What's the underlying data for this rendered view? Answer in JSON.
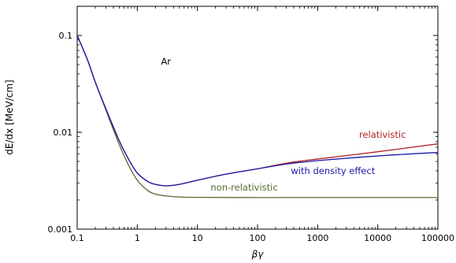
{
  "chart_data": {
    "type": "line",
    "title": "",
    "xlabel": "βγ",
    "ylabel": "dE/dx [MeV/cm]",
    "xscale": "log",
    "yscale": "log",
    "xlim": [
      0.1,
      100000
    ],
    "ylim": [
      0.001,
      0.2
    ],
    "grid": false,
    "x_ticks": [
      {
        "value": 0.1,
        "label": "0.1"
      },
      {
        "value": 1,
        "label": "1"
      },
      {
        "value": 10,
        "label": "10"
      },
      {
        "value": 100,
        "label": "100"
      },
      {
        "value": 1000,
        "label": "1000"
      },
      {
        "value": 10000,
        "label": "10000"
      },
      {
        "value": 100000,
        "label": "100000"
      }
    ],
    "y_ticks": [
      {
        "value": 0.001,
        "label": "0.001"
      },
      {
        "value": 0.01,
        "label": "0.01"
      },
      {
        "value": 0.1,
        "label": "0.1"
      }
    ],
    "annotations": [
      {
        "text": "Ar",
        "x": 3,
        "y": 0.05,
        "color": "#000000"
      }
    ],
    "series": [
      {
        "name": "non-relativistic",
        "color": "#556b2f",
        "label_pos": {
          "x": 60,
          "y": 0.0025
        },
        "points": [
          [
            0.1,
            0.1
          ],
          [
            0.15,
            0.055
          ],
          [
            0.2,
            0.033
          ],
          [
            0.3,
            0.017
          ],
          [
            0.5,
            0.0075
          ],
          [
            0.7,
            0.0047
          ],
          [
            1,
            0.0032
          ],
          [
            1.5,
            0.0025
          ],
          [
            2,
            0.0023
          ],
          [
            3,
            0.0022
          ],
          [
            5,
            0.00215
          ],
          [
            10,
            0.00213
          ],
          [
            100,
            0.00212
          ],
          [
            1000,
            0.00212
          ],
          [
            10000,
            0.00212
          ],
          [
            100000,
            0.00212
          ]
        ]
      },
      {
        "name": "relativistic",
        "color": "#b22222",
        "label_pos": {
          "x": 12000,
          "y": 0.0088
        },
        "points": [
          [
            0.1,
            0.1
          ],
          [
            0.15,
            0.055
          ],
          [
            0.2,
            0.033
          ],
          [
            0.3,
            0.0175
          ],
          [
            0.5,
            0.0082
          ],
          [
            0.7,
            0.0054
          ],
          [
            1,
            0.0038
          ],
          [
            1.5,
            0.0031
          ],
          [
            2,
            0.0029
          ],
          [
            3,
            0.0028
          ],
          [
            5,
            0.0029
          ],
          [
            10,
            0.0032
          ],
          [
            30,
            0.0037
          ],
          [
            100,
            0.0042
          ],
          [
            300,
            0.0048
          ],
          [
            1000,
            0.0053
          ],
          [
            10000,
            0.0063
          ],
          [
            100000,
            0.0076
          ]
        ]
      },
      {
        "name": "with density effect",
        "color": "#1a1aa6",
        "label_pos": {
          "x": 1800,
          "y": 0.0037
        },
        "points": [
          [
            0.1,
            0.1
          ],
          [
            0.15,
            0.055
          ],
          [
            0.2,
            0.033
          ],
          [
            0.3,
            0.0175
          ],
          [
            0.5,
            0.0082
          ],
          [
            0.7,
            0.0054
          ],
          [
            1,
            0.0038
          ],
          [
            1.5,
            0.0031
          ],
          [
            2,
            0.0029
          ],
          [
            3,
            0.0028
          ],
          [
            5,
            0.0029
          ],
          [
            10,
            0.0032
          ],
          [
            30,
            0.0037
          ],
          [
            100,
            0.0042
          ],
          [
            300,
            0.0047
          ],
          [
            1000,
            0.0051
          ],
          [
            10000,
            0.0057
          ],
          [
            100000,
            0.0062
          ]
        ]
      }
    ]
  }
}
